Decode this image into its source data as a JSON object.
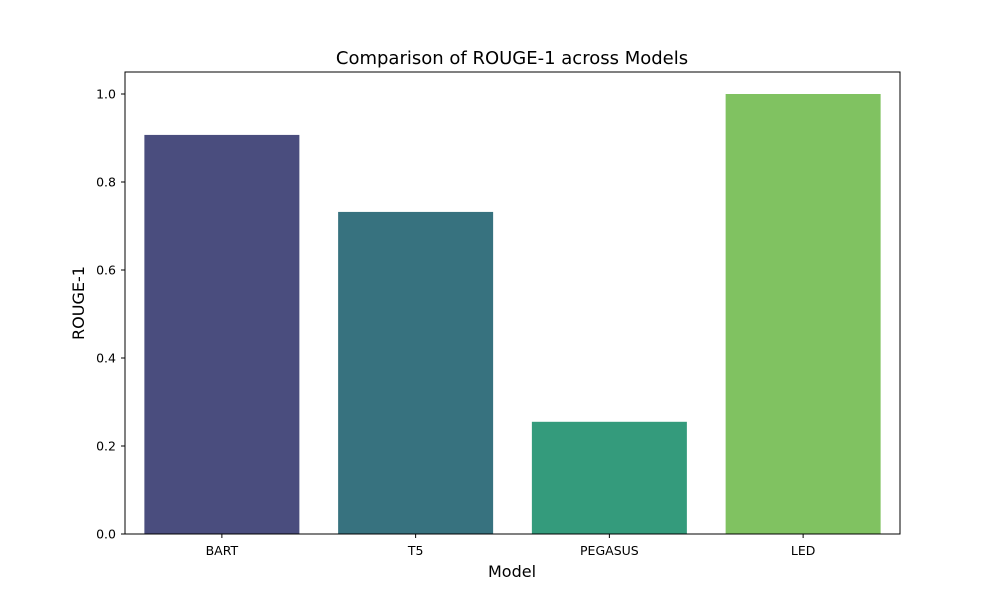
{
  "chart_data": {
    "type": "bar",
    "title": "Comparison of ROUGE-1 across Models",
    "xlabel": "Model",
    "ylabel": "ROUGE-1",
    "categories": [
      "BART",
      "T5",
      "PEGASUS",
      "LED"
    ],
    "values": [
      0.907,
      0.732,
      0.255,
      1.0
    ],
    "colors": [
      "#4a4d7e",
      "#37727f",
      "#349b7c",
      "#80c261"
    ],
    "ylim": [
      0,
      1.05
    ],
    "yticks": [
      0.0,
      0.2,
      0.4,
      0.6,
      0.8,
      1.0
    ],
    "ytick_labels": [
      "0.0",
      "0.2",
      "0.4",
      "0.6",
      "0.8",
      "1.0"
    ],
    "grid": false,
    "legend": "none"
  }
}
